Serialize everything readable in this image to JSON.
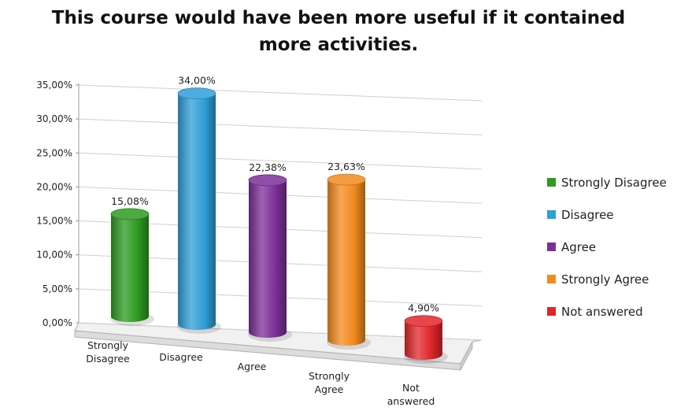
{
  "chart_data": {
    "type": "bar",
    "title": "This course would have been more useful if it contained\nmore activities.",
    "categories": [
      "Strongly Disagree",
      "Disagree",
      "Agree",
      "Strongly Agree",
      "Not answered"
    ],
    "category_labels": [
      [
        "Strongly",
        "Disagree"
      ],
      [
        "Disagree"
      ],
      [
        "Agree"
      ],
      [
        "Strongly",
        "Agree"
      ],
      [
        "Not",
        "answered"
      ]
    ],
    "values": [
      15.08,
      34.0,
      22.38,
      23.63,
      4.9
    ],
    "value_labels": [
      "15,08%",
      "34,00%",
      "22,38%",
      "23,63%",
      "4,90%"
    ],
    "y_ticks": [
      "0,00%",
      "5,00%",
      "10,00%",
      "15,00%",
      "20,00%",
      "25,00%",
      "30,00%",
      "35,00%"
    ],
    "ylim": [
      0,
      35
    ],
    "grid": true,
    "legend_position": "right",
    "colors": [
      "#2e9a1f",
      "#2f9fd8",
      "#7b2f97",
      "#f28a1e",
      "#e0262a"
    ]
  }
}
